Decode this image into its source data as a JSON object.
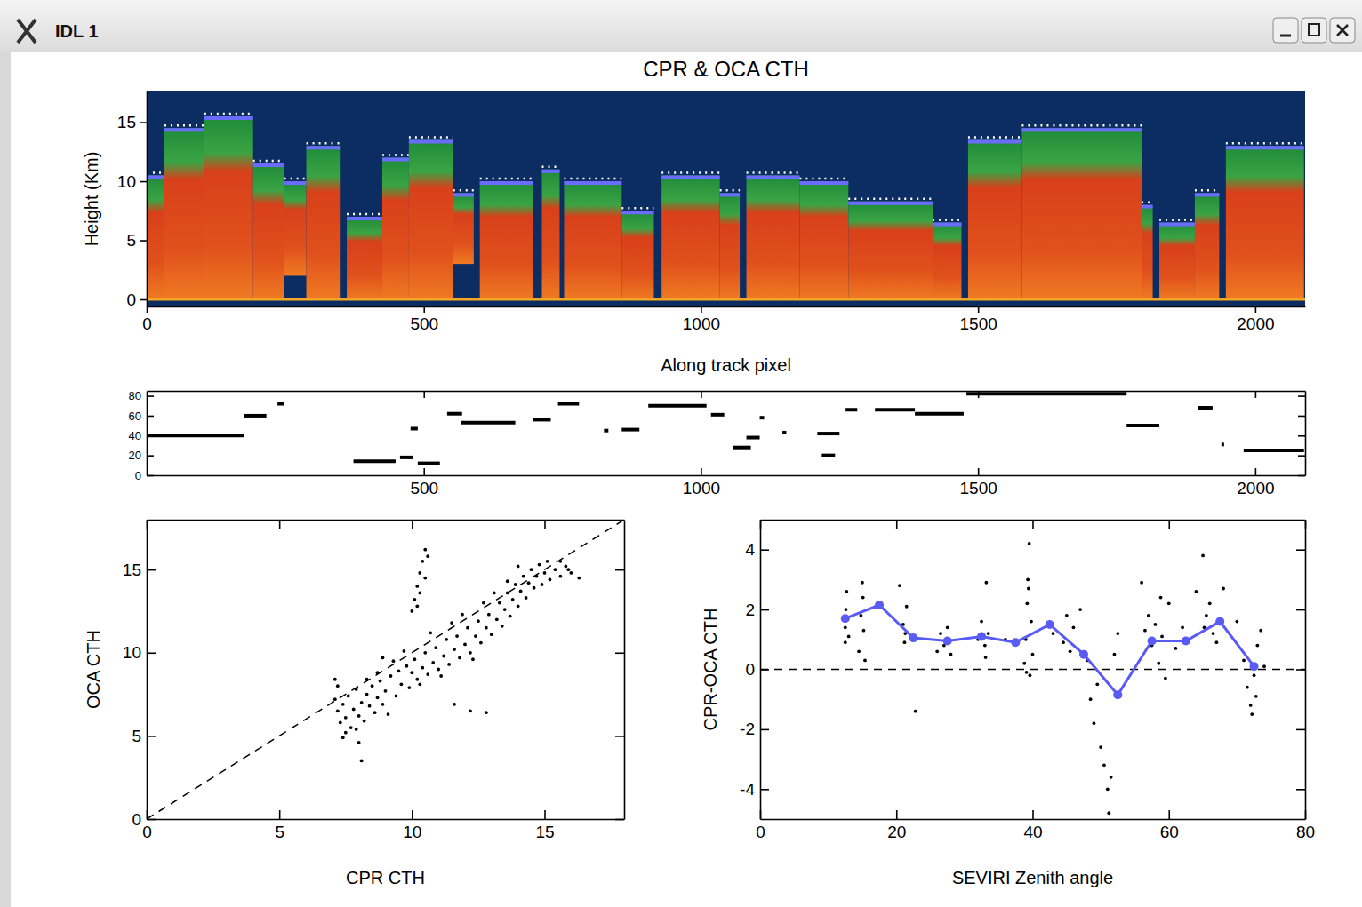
{
  "window": {
    "title": "IDL 1"
  },
  "chart_data": [
    {
      "type": "curtain",
      "title": "CPR & OCA CTH",
      "xlabel": "Along track pixel",
      "ylabel": "Height (Km)",
      "xlim": [
        0,
        2090
      ],
      "ylim": [
        -0.6,
        17.6
      ],
      "xticks": [
        0,
        500,
        1000,
        1500,
        2000
      ],
      "yticks": [
        0,
        5,
        10,
        15
      ],
      "x": [
        0,
        32,
        104,
        192,
        248,
        288,
        361,
        425,
        473,
        553,
        601,
        713,
        753,
        857,
        929,
        1034,
        1082,
        1178,
        1266,
        1418,
        1482,
        1579,
        1795,
        1827,
        1891,
        1947
      ],
      "x_end": [
        32,
        104,
        192,
        248,
        288,
        350,
        425,
        473,
        553,
        590,
        697,
        745,
        857,
        915,
        1034,
        1070,
        1178,
        1266,
        1418,
        1470,
        1579,
        1795,
        1815,
        1891,
        1935,
        2088
      ],
      "values": [
        10.5,
        14.5,
        15.5,
        11.5,
        10,
        13,
        7,
        12,
        13.5,
        9,
        10,
        11,
        10,
        7.5,
        10.5,
        9,
        10.5,
        10,
        8.3,
        6.5,
        13.5,
        14.5,
        8,
        6.5,
        9,
        13
      ],
      "base": [
        0,
        0,
        0,
        0,
        2,
        0,
        0,
        0,
        0,
        3,
        0,
        0,
        0,
        0,
        0,
        0,
        0,
        0,
        0,
        0,
        0,
        0,
        0,
        0,
        0,
        0
      ]
    },
    {
      "type": "segments",
      "color": "#000000",
      "xlim": [
        0,
        2090
      ],
      "ylim": [
        0,
        85
      ],
      "xticks": [
        500,
        1000,
        1500,
        2000
      ],
      "yticks": [
        0,
        20,
        40,
        60,
        80
      ],
      "x": [
        0,
        176,
        236,
        373,
        457,
        476,
        489,
        542,
        567,
        697,
        742,
        825,
        857,
        905,
        1018,
        1058,
        1082,
        1106,
        1147,
        1210,
        1218,
        1261,
        1314,
        1386,
        1479,
        1768,
        1896,
        1939,
        1979
      ],
      "x_end": [
        176,
        216,
        248,
        449,
        481,
        489,
        529,
        569,
        665,
        729,
        780,
        833,
        889,
        1010,
        1042,
        1090,
        1106,
        1114,
        1154,
        1250,
        1242,
        1282,
        1386,
        1474,
        1768,
        1827,
        1923,
        1942,
        2088
      ],
      "values": [
        40,
        60,
        72,
        14,
        18,
        47,
        12,
        62,
        53,
        56,
        72,
        45,
        46,
        70,
        61,
        28,
        38,
        58,
        43,
        42,
        20,
        66,
        66,
        62,
        82,
        50,
        68,
        31,
        25
      ]
    },
    {
      "type": "scatter",
      "xlabel": "CPR CTH",
      "ylabel": "OCA CTH",
      "xlim": [
        0,
        18
      ],
      "ylim": [
        0,
        18
      ],
      "xticks": [
        0,
        5,
        10,
        15
      ],
      "yticks": [
        0,
        5,
        10,
        15
      ],
      "series": [
        {
          "type": "scatter",
          "color": "#000000",
          "marker": "dot",
          "x": [
            7.1,
            7.2,
            7.3,
            7.4,
            7.5,
            7.6,
            7.7,
            7.8,
            7.9,
            8.0,
            8.1,
            8.2,
            8.3,
            8.4,
            8.5,
            8.6,
            8.7,
            8.8,
            8.9,
            9.0,
            7.2,
            7.5,
            7.9,
            8.3,
            9.2,
            9.4,
            9.5,
            9.6,
            9.8,
            9.9,
            10.0,
            10.1,
            10.2,
            10.4,
            10.5,
            10.6,
            10.8,
            10.9,
            11.0,
            11.2,
            11.3,
            11.4,
            11.6,
            11.7,
            11.8,
            12.0,
            12.1,
            12.2,
            12.4,
            12.5,
            12.6,
            12.8,
            12.9,
            13.0,
            13.2,
            13.3,
            13.4,
            13.5,
            13.6,
            13.7,
            13.8,
            13.9,
            14.0,
            14.1,
            14.2,
            14.3,
            14.4,
            14.5,
            14.6,
            14.7,
            14.8,
            14.9,
            15.0,
            15.1,
            15.2,
            15.4,
            15.6,
            15.8,
            16.0,
            13.1,
            13.6,
            14.0,
            12.7,
            11.9,
            11.5,
            10.7,
            9.7,
            9.3,
            8.7,
            10.3,
            11.1,
            12.3,
            9.1,
            8.0,
            7.4,
            8.1,
            10.0,
            10.1,
            10.2,
            10.3,
            10.4,
            10.5,
            10.6,
            10.3,
            10.5,
            10.2,
            12.2,
            12.8,
            11.6,
            15.6,
            15.9,
            7.1,
            8.9,
            16.3
          ],
          "values": [
            7.2,
            6.5,
            5.8,
            6.9,
            6.1,
            7.4,
            5.5,
            6.6,
            7.8,
            6.2,
            7.0,
            5.9,
            7.5,
            6.8,
            8.0,
            6.4,
            7.3,
            8.3,
            6.9,
            7.7,
            8.0,
            5.2,
            5.4,
            8.4,
            8.6,
            7.4,
            8.9,
            8.1,
            9.2,
            7.9,
            8.8,
            9.6,
            8.4,
            9.1,
            10.0,
            8.7,
            9.4,
            10.3,
            9.0,
            9.8,
            10.8,
            9.3,
            10.2,
            11.0,
            9.7,
            10.5,
            11.5,
            10.0,
            11.0,
            11.9,
            10.6,
            11.5,
            12.3,
            11.1,
            12.0,
            13.0,
            11.6,
            12.6,
            13.6,
            12.2,
            13.2,
            14.1,
            12.8,
            13.7,
            14.6,
            13.3,
            14.2,
            15.0,
            13.9,
            14.6,
            15.3,
            14.1,
            14.8,
            15.5,
            14.4,
            15.0,
            14.6,
            15.2,
            14.8,
            13.6,
            14.3,
            15.2,
            13.0,
            12.3,
            11.8,
            11.2,
            10.1,
            9.5,
            8.8,
            8.1,
            8.6,
            9.6,
            6.3,
            4.6,
            4.9,
            3.5,
            12.5,
            13.2,
            14.0,
            14.8,
            15.5,
            16.2,
            15.8,
            13.6,
            14.5,
            12.8,
            6.5,
            6.4,
            6.9,
            15.5,
            15.0,
            8.4,
            9.7,
            14.5
          ]
        },
        {
          "type": "line",
          "color": "#000000",
          "line_style": "dashed",
          "x": [
            0,
            18
          ],
          "values": [
            0,
            18
          ]
        }
      ]
    },
    {
      "type": "scatter",
      "xlabel": "SEVIRI Zenith angle",
      "ylabel": "CPR-OCA CTH",
      "xlim": [
        0,
        80
      ],
      "ylim": [
        -5,
        5
      ],
      "xticks": [
        0,
        20,
        40,
        60,
        80
      ],
      "yticks": [
        -4,
        -2,
        0,
        2,
        4
      ],
      "series": [
        {
          "type": "scatter",
          "color": "#000000",
          "marker": "dot",
          "x": [
            12.5,
            12.5,
            12.6,
            12.7,
            13.0,
            14.5,
            14.8,
            15.0,
            15.2,
            15.4,
            20.5,
            21.0,
            21.2,
            21.5,
            22.8,
            26.0,
            26.5,
            27.0,
            27.5,
            28.0,
            32.0,
            32.5,
            33.0,
            33.2,
            33.5,
            38.8,
            39.0,
            39.2,
            39.3,
            39.5,
            39.6,
            39.8,
            40.0,
            43.0,
            44.5,
            45.0,
            45.5,
            46.0,
            47.0,
            48.0,
            48.5,
            49.0,
            49.5,
            50.0,
            50.5,
            51.0,
            51.2,
            51.5,
            52.0,
            52.5,
            56.0,
            56.5,
            57.0,
            57.5,
            58.0,
            58.5,
            59.0,
            59.5,
            60.0,
            61.0,
            62.0,
            63.0,
            64.0,
            65.0,
            65.5,
            66.0,
            66.5,
            67.0,
            68.0,
            70.0,
            71.0,
            71.5,
            72.0,
            72.5,
            73.0,
            73.5,
            74.0,
            72.2,
            36.0,
            17.0,
            12.6,
            15.1,
            21.3,
            33.1,
            39.4,
            39.1,
            57.2,
            58.8,
            65.2,
            72.8
          ],
          "values": [
            0.9,
            1.4,
            2.0,
            2.6,
            1.1,
            0.6,
            1.8,
            2.9,
            1.3,
            0.3,
            2.8,
            1.5,
            0.9,
            2.1,
            -1.4,
            0.6,
            1.2,
            0.8,
            1.4,
            0.5,
            1.0,
            1.6,
            0.8,
            2.9,
            1.2,
            0.2,
            1.0,
            2.2,
            3.0,
            4.2,
            -0.2,
            1.6,
            0.5,
            1.2,
            0.9,
            1.8,
            0.6,
            1.4,
            2.0,
            0.3,
            -1.0,
            -1.8,
            -0.5,
            -2.6,
            -3.2,
            -4.0,
            -4.8,
            -3.6,
            0.5,
            1.2,
            2.9,
            1.3,
            1.8,
            0.8,
            1.5,
            0.2,
            1.1,
            -0.3,
            2.2,
            0.7,
            1.4,
            1.0,
            2.6,
            3.8,
            1.8,
            2.2,
            1.2,
            0.9,
            2.7,
            1.6,
            0.3,
            -0.6,
            -1.2,
            -0.2,
            0.8,
            1.3,
            0.1,
            -1.5,
            1.0,
            2.1,
            1.7,
            2.4,
            1.2,
            0.4,
            2.7,
            -0.1,
            1.0,
            2.4,
            1.4,
            -0.9
          ]
        },
        {
          "type": "line",
          "color": "#000000",
          "line_style": "dashed",
          "x": [
            0,
            80
          ],
          "values": [
            0,
            0
          ]
        },
        {
          "type": "line",
          "color": "#5a5af5",
          "marker": "circle",
          "x": [
            12.5,
            17.5,
            22.5,
            27.5,
            32.5,
            37.5,
            42.5,
            47.5,
            52.5,
            57.5,
            62.5,
            67.5,
            72.5
          ],
          "values": [
            1.7,
            2.15,
            1.05,
            0.95,
            1.1,
            0.9,
            1.5,
            0.5,
            -0.85,
            0.95,
            0.95,
            1.6,
            0.1
          ]
        }
      ]
    }
  ]
}
